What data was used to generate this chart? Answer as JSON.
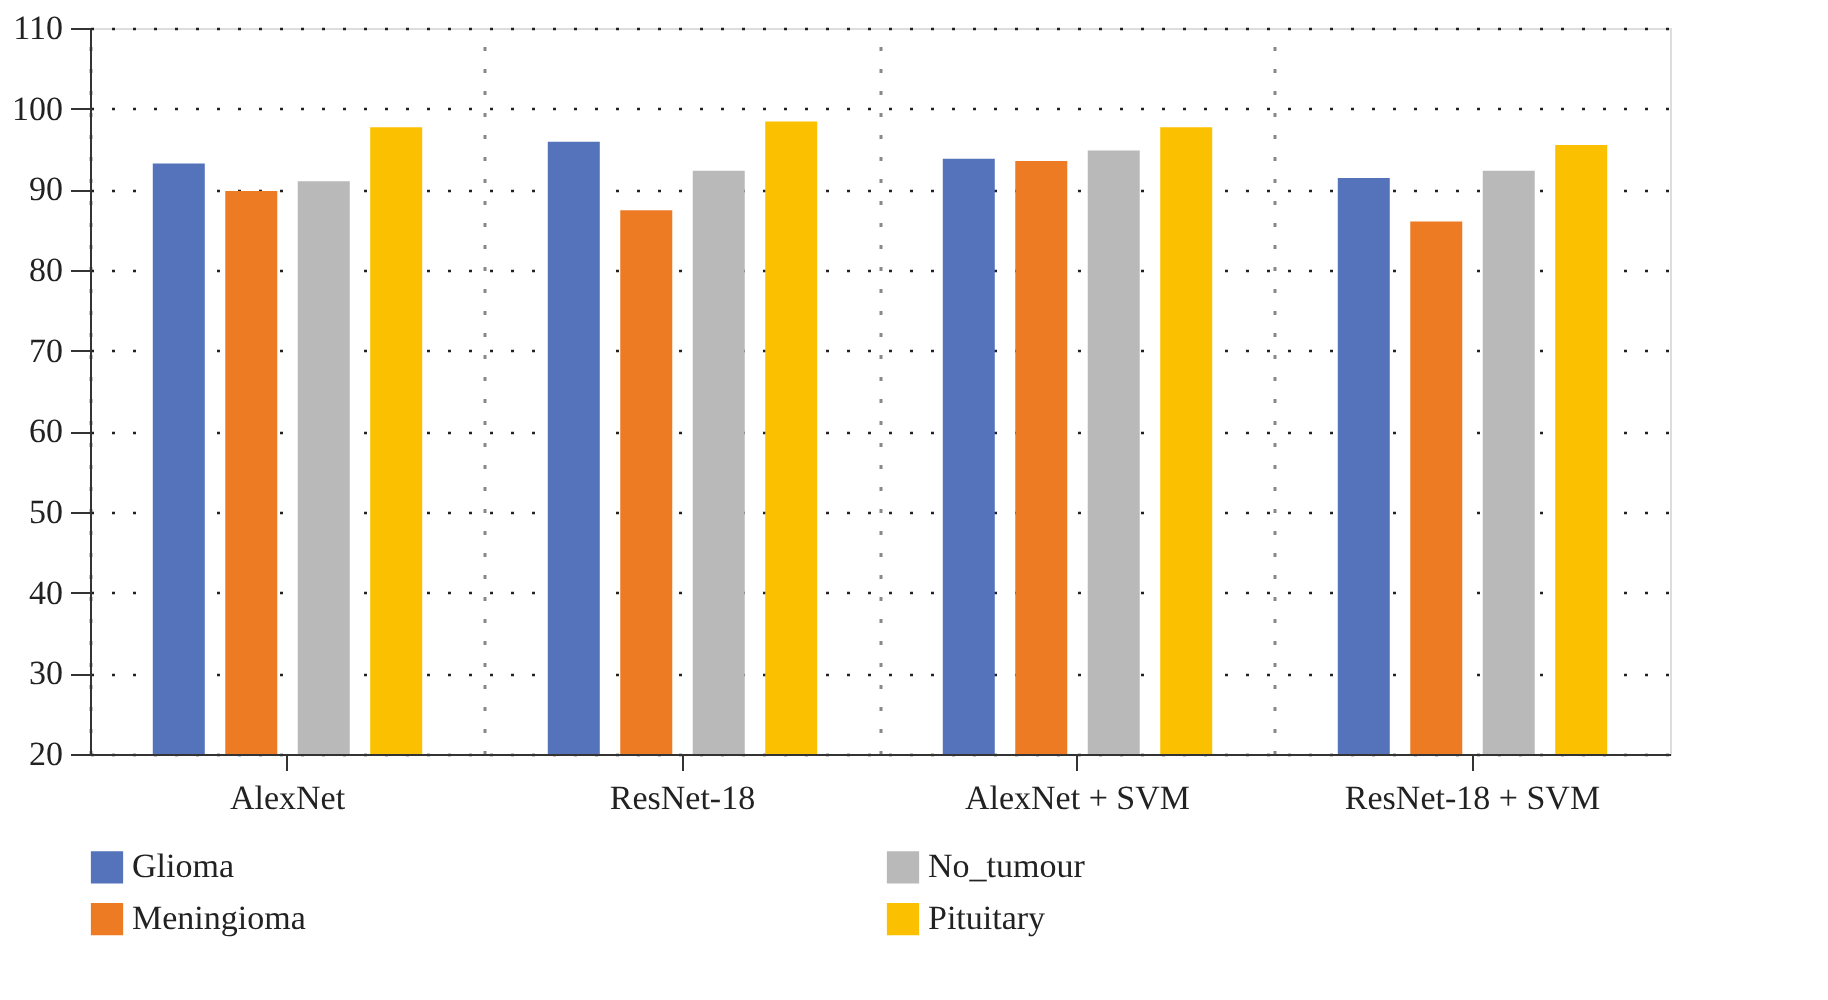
{
  "chart_data": {
    "type": "bar",
    "categories": [
      "AlexNet",
      "ResNet-18",
      "AlexNet + SVM",
      "ResNet-18 + SVM"
    ],
    "series": [
      {
        "name": "Glioma",
        "color": "#5473bb",
        "values": [
          93.2,
          95.9,
          93.8,
          91.4
        ]
      },
      {
        "name": "Meningioma",
        "color": "#ed7b23",
        "values": [
          89.8,
          87.4,
          93.5,
          86.0
        ]
      },
      {
        "name": "No_tumour",
        "color": "#b9b9b9",
        "values": [
          91.0,
          92.3,
          94.8,
          92.3
        ]
      },
      {
        "name": "Pituitary",
        "color": "#fbc100",
        "values": [
          97.7,
          98.4,
          97.7,
          95.5
        ]
      }
    ],
    "ylim": [
      20,
      110
    ],
    "yticks": [
      20,
      30,
      40,
      50,
      60,
      70,
      80,
      90,
      100,
      110
    ],
    "grid": true,
    "legend": "bottom"
  }
}
